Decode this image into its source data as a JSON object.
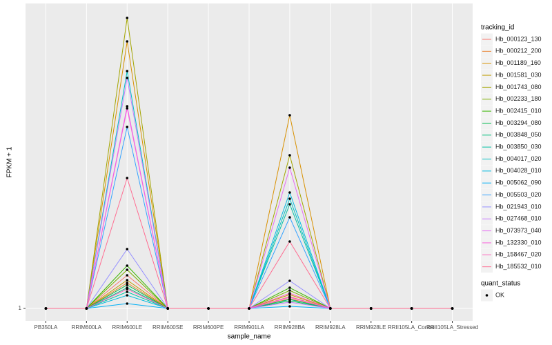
{
  "chart_data": {
    "type": "line",
    "x_label": "sample_name",
    "y_label": "FPKM + 1",
    "categories": [
      "PB350LA",
      "RRIM600LA",
      "RRIM600LE",
      "RRIM600SE",
      "RRIM600PE",
      "RRIM901LA",
      "RRIM928BA",
      "RRIM928LA",
      "RRIM928LE",
      "RRII105LA_Control",
      "RRII105LA_Stressed"
    ],
    "ylim": [
      -0.8,
      45.2
    ],
    "yticks": [
      1
    ],
    "grid": true,
    "legend_position": "right",
    "legend_title": "tracking_id",
    "point_color": "#000000",
    "point_legend": {
      "title": "quant_status",
      "labels": [
        "OK"
      ]
    },
    "series": [
      {
        "name": "Hb_000123_130",
        "color": "#F8766D",
        "values": [
          1,
          1,
          5.8,
          1,
          1,
          1,
          2.7,
          1,
          1,
          1,
          1
        ]
      },
      {
        "name": "Hb_000212_200",
        "color": "#EA8331",
        "values": [
          1,
          1,
          4.7,
          1,
          1,
          1,
          2.4,
          1,
          1,
          1,
          1
        ]
      },
      {
        "name": "Hb_001189_160",
        "color": "#D89000",
        "values": [
          1,
          1,
          39.7,
          1,
          1,
          1,
          29,
          1,
          1,
          1,
          1
        ]
      },
      {
        "name": "Hb_001581_030",
        "color": "#C09B00",
        "values": [
          1,
          1,
          5.1,
          1,
          1,
          1,
          3,
          1,
          1,
          1,
          1
        ]
      },
      {
        "name": "Hb_001743_080",
        "color": "#A3A500",
        "values": [
          1,
          1,
          43.1,
          1,
          1,
          1,
          23.2,
          1,
          1,
          1,
          1
        ]
      },
      {
        "name": "Hb_002233_180",
        "color": "#7CAE00",
        "values": [
          1,
          1,
          6.6,
          1,
          1,
          1,
          3.6,
          1,
          1,
          1,
          1
        ]
      },
      {
        "name": "Hb_002415_010",
        "color": "#39B600",
        "values": [
          1,
          1,
          7.2,
          1,
          1,
          1,
          4,
          1,
          1,
          1,
          1
        ]
      },
      {
        "name": "Hb_003294_080",
        "color": "#00BB4E",
        "values": [
          1,
          1,
          4.4,
          1,
          1,
          1,
          2.1,
          1,
          1,
          1,
          1
        ]
      },
      {
        "name": "Hb_003848_050",
        "color": "#00BF7D",
        "values": [
          1,
          1,
          4,
          1,
          1,
          1,
          2.3,
          1,
          1,
          1,
          1
        ]
      },
      {
        "name": "Hb_003850_030",
        "color": "#00C1A3",
        "values": [
          1,
          1,
          3.4,
          1,
          1,
          1,
          16.1,
          1,
          1,
          1,
          1
        ]
      },
      {
        "name": "Hb_004017_020",
        "color": "#00BFC4",
        "values": [
          1,
          1,
          35.4,
          1,
          1,
          1,
          16.9,
          1,
          1,
          1,
          1
        ]
      },
      {
        "name": "Hb_004028_010",
        "color": "#00BAE0",
        "values": [
          1,
          1,
          2.9,
          1,
          1,
          1,
          17.8,
          1,
          1,
          1,
          1
        ]
      },
      {
        "name": "Hb_005062_090",
        "color": "#00B0F6",
        "values": [
          1,
          1,
          1.7,
          1,
          1,
          1,
          1.3,
          1,
          1,
          1,
          1
        ]
      },
      {
        "name": "Hb_005503_020",
        "color": "#35A2FF",
        "values": [
          1,
          1,
          27.3,
          1,
          1,
          1,
          14.2,
          1,
          1,
          1,
          1
        ]
      },
      {
        "name": "Hb_021943_010",
        "color": "#9590FF",
        "values": [
          1,
          1,
          9.6,
          1,
          1,
          1,
          5,
          1,
          1,
          1,
          1
        ]
      },
      {
        "name": "Hb_027468_010",
        "color": "#C77CFF",
        "values": [
          1,
          1,
          34.4,
          1,
          1,
          1,
          1.9,
          1,
          1,
          1,
          1
        ]
      },
      {
        "name": "Hb_073973_040",
        "color": "#E76BF3",
        "values": [
          1,
          1,
          30.3,
          1,
          1,
          1,
          21.4,
          1,
          1,
          1,
          1
        ]
      },
      {
        "name": "Hb_132330_010",
        "color": "#FA62DB",
        "values": [
          1,
          1,
          30,
          1,
          1,
          1,
          2.6,
          1,
          1,
          1,
          1
        ]
      },
      {
        "name": "Hb_158467_020",
        "color": "#FF62BC",
        "values": [
          1,
          1,
          3.8,
          1,
          1,
          1,
          3.2,
          1,
          1,
          1,
          1
        ]
      },
      {
        "name": "Hb_185532_010",
        "color": "#FF6C91",
        "values": [
          1,
          1,
          19.9,
          1,
          1,
          1,
          10.7,
          1,
          1,
          1,
          1
        ]
      }
    ]
  }
}
